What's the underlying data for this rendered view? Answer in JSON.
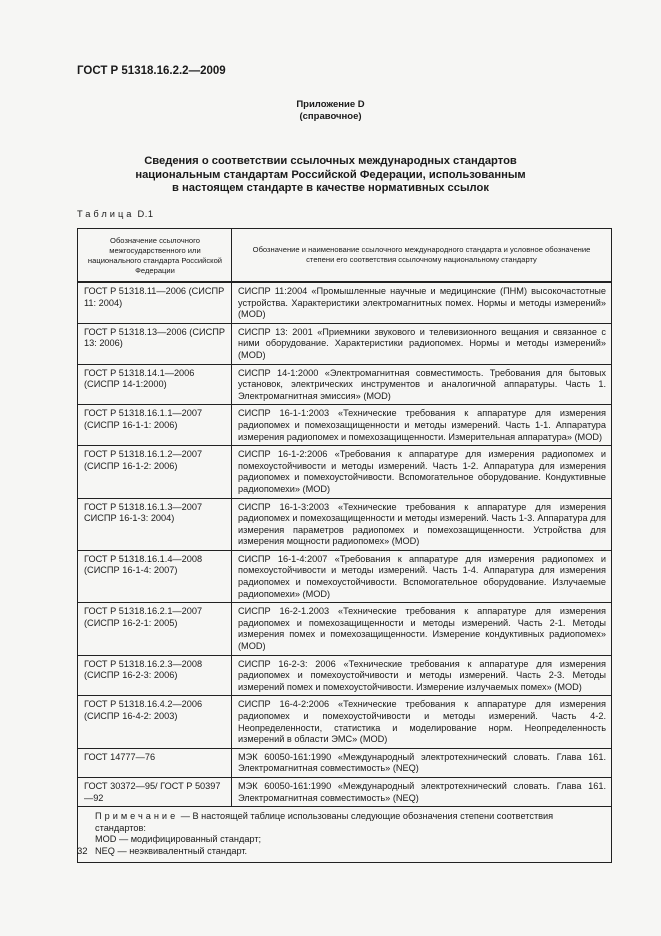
{
  "header": {
    "doc_id": "ГОСТ Р 51318.16.2.2—2009"
  },
  "annex": {
    "title": "Приложение D",
    "subtitle": "(справочное)"
  },
  "title": {
    "line1": "Сведения о соответствии ссылочных международных стандартов",
    "line2": "национальным стандартам Российской Федерации, использованным",
    "line3": "в настоящем стандарте в качестве нормативных ссылок"
  },
  "table": {
    "caption_word": "Таблица",
    "caption_num": "D.1",
    "col1_header": "Обозначение ссылочного межгосударственного или национального стандарта Российской Федерации",
    "col2_header": "Обозначение и наименование ссылочного международного стандарта и условное обозначение степени его соответствия ссылочному национальному стандарту",
    "rows": [
      {
        "national": "ГОСТ Р 51318.11—2006 (СИСПР 11: 2004)",
        "international": "СИСПР 11:2004 «Промышленные научные и медицинские (ПНМ) высокочастотные устройства. Характеристики электромагнитных помех. Нормы и методы измерений» (MOD)"
      },
      {
        "national": "ГОСТ Р 51318.13—2006 (СИСПР 13: 2006)",
        "international": "СИСПР 13: 2001 «Приемники звукового и телевизионного вещания и связанное с ними оборудование. Характеристики радиопомех. Нормы и методы измерений» (MOD)"
      },
      {
        "national": "ГОСТ Р 51318.14.1—2006 (СИСПР 14-1:2000)",
        "international": "СИСПР 14-1:2000 «Электромагнитная совместимость. Требования для бытовых установок, электрических инструментов и аналогичной аппаратуры. Часть 1. Электромагнитная эмиссия» (MOD)"
      },
      {
        "national": "ГОСТ Р 51318.16.1.1—2007 (СИСПР 16-1-1: 2006)",
        "international": "СИСПР 16-1-1:2003 «Технические требования к аппаратуре для измерения радиопомех и помехозащищенности и методы измерений. Часть 1-1. Аппаратура измерения радиопомех и помехозащищенности. Измерительная аппаратура» (MOD)"
      },
      {
        "national": "ГОСТ Р 51318.16.1.2—2007 (СИСПР 16-1-2: 2006)",
        "international": "СИСПР 16-1-2:2006 «Требования к аппаратуре для измерения радиопомех и помехоустойчивости и методы измерений. Часть 1-2. Аппаратура для измерения радиопомех и помехоустойчивости. Вспомогательное оборудование. Кондуктивные радиопомехи» (MOD)"
      },
      {
        "national": "ГОСТ Р 51318.16.1.3—2007 СИСПР 16-1-3: 2004)",
        "international": "СИСПР 16-1-3:2003 «Технические требования к аппаратуре для измерения радиопомех и помехозащищенности и методы измерений. Часть 1-3. Аппаратура для измерения параметров радиопомех и помехозащищенности. Устройства для измерения мощности радиопомех» (MOD)"
      },
      {
        "national": "ГОСТ Р 51318.16.1.4—2008 (СИСПР 16-1-4: 2007)",
        "international": "СИСПР 16-1-4:2007 «Требования к аппаратуре для измерения радиопомех и помехоустойчивости и методы измерений. Часть 1-4. Аппаратура для измерения радиопомех и помехоустойчивости. Вспомогательное оборудование. Излучаемые радиопомехи» (MOD)"
      },
      {
        "national": "ГОСТ Р 51318.16.2.1—2007 (СИСПР 16-2-1: 2005)",
        "international": "СИСПР 16-2-1.2003 «Технические требования к аппаратуре для измерения радиопомех и помехозащищенности и методы измерений. Часть 2-1. Методы измерения помех и помехозащищенности. Измерение кондуктивных радиопомех» (MOD)"
      },
      {
        "national": "ГОСТ Р 51318.16.2.3—2008 (СИСПР 16-2-3: 2006)",
        "international": "СИСПР 16-2-3: 2006 «Технические требования к аппаратуре для измерения радиопомех и помехоустойчивости и методы измерений. Часть 2-3. Методы измерений помех и помехоустойчивости. Измерение излучаемых помех» (MOD)"
      },
      {
        "national": "ГОСТ Р 51318.16.4.2—2006 (СИСПР 16-4-2: 2003)",
        "international": "СИСПР 16-4-2:2006 «Технические требования к аппаратуре для измерения радиопомех и помехоустойчивости и методы измерений. Часть 4-2. Неопределенности, статистика и моделирование норм. Неопределенность измерений в области ЭМС» (MOD)"
      },
      {
        "national": "ГОСТ 14777—76",
        "international": "МЭК 60050-161:1990 «Международный электротехнический словать. Глава 161. Электромагнитная совместимость» (NEQ)"
      },
      {
        "national": "ГОСТ 30372—95/ ГОСТ Р 50397—92",
        "international": "МЭК 60050-161:1990 «Международный электротехнический словать. Глава 161. Электромагнитная совместимость» (NEQ)"
      }
    ],
    "note": {
      "label": "Примечание",
      "text": " — В настоящей таблице использованы следующие обозначения степени соответствия стандартов:",
      "mod": "MOD — модифицированный стандарт;",
      "neq": "NEQ — неэквивалентный стандарт."
    }
  },
  "page_number": "32"
}
